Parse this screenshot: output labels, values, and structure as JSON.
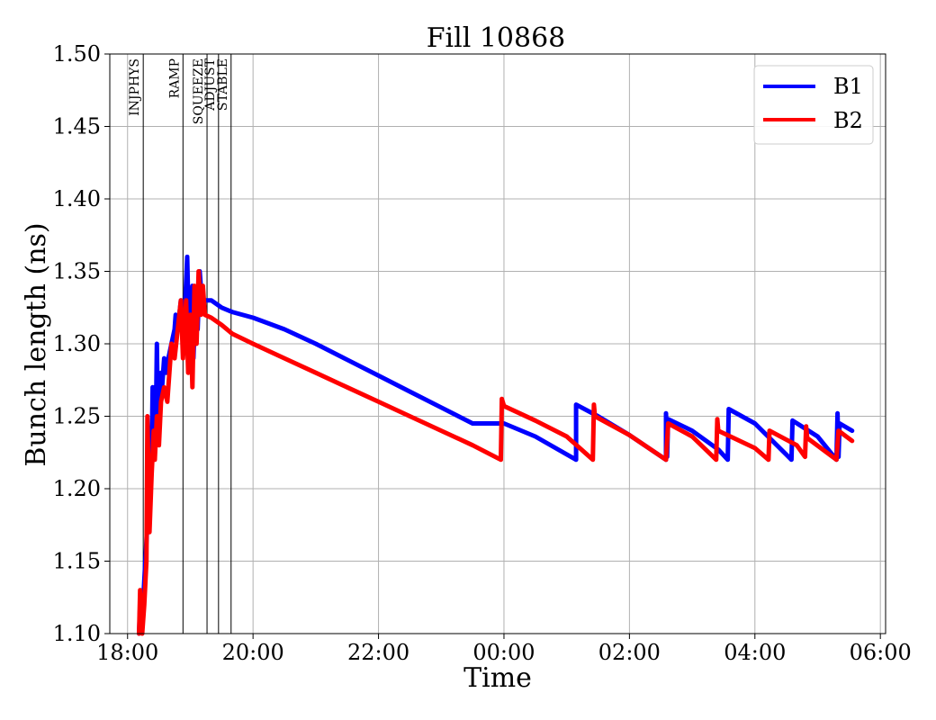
{
  "chart_data": {
    "type": "line",
    "title": "Fill 10868",
    "xlabel": "Time",
    "ylabel": "Bunch length (ns)",
    "xlim": [
      "17:43",
      "06:05"
    ],
    "ylim": [
      1.1,
      1.5
    ],
    "xticks": [
      {
        "time": "18:00",
        "label": "18:00"
      },
      {
        "time": "20:00",
        "label": "20:00"
      },
      {
        "time": "22:00",
        "label": "22:00"
      },
      {
        "time": "00:00",
        "label": "00:00"
      },
      {
        "time": "02:00",
        "label": "02:00"
      },
      {
        "time": "04:00",
        "label": "04:00"
      },
      {
        "time": "06:00",
        "label": "06:00"
      }
    ],
    "yticks": [
      1.1,
      1.15,
      1.2,
      1.25,
      1.3,
      1.35,
      1.4,
      1.45,
      1.5
    ],
    "ytick_labels": [
      "1.10",
      "1.15",
      "1.20",
      "1.25",
      "1.30",
      "1.35",
      "1.40",
      "1.45",
      "1.50"
    ],
    "grid": true,
    "legend": "top-right",
    "phases": [
      {
        "label": "INJPHYS",
        "time": "18:15"
      },
      {
        "label": "RAMP",
        "time": "18:53"
      },
      {
        "label": "SQUEEZE",
        "time": "19:16"
      },
      {
        "label": "ADJUST",
        "time": "19:27"
      },
      {
        "label": "STABLE",
        "time": "19:39"
      }
    ],
    "series": [
      {
        "name": "B1",
        "color": "#0000ff",
        "points": [
          [
            "18:11",
            1.1
          ],
          [
            "18:12",
            1.12
          ],
          [
            "18:14",
            1.11
          ],
          [
            "18:17",
            1.15
          ],
          [
            "18:20",
            1.19
          ],
          [
            "18:23",
            1.22
          ],
          [
            "18:24",
            1.27
          ],
          [
            "18:25",
            1.23
          ],
          [
            "18:26",
            1.27
          ],
          [
            "18:27",
            1.24
          ],
          [
            "18:28",
            1.3
          ],
          [
            "18:29",
            1.25
          ],
          [
            "18:30",
            1.26
          ],
          [
            "18:32",
            1.28
          ],
          [
            "18:33",
            1.27
          ],
          [
            "18:35",
            1.29
          ],
          [
            "18:37",
            1.28
          ],
          [
            "18:39",
            1.29
          ],
          [
            "18:42",
            1.3
          ],
          [
            "18:45",
            1.31
          ],
          [
            "18:46",
            1.32
          ],
          [
            "18:48",
            1.31
          ],
          [
            "18:51",
            1.33
          ],
          [
            "18:54",
            1.31
          ],
          [
            "18:57",
            1.36
          ],
          [
            "18:58",
            1.33
          ],
          [
            "19:00",
            1.3
          ],
          [
            "19:02",
            1.34
          ],
          [
            "19:03",
            1.29
          ],
          [
            "19:05",
            1.33
          ],
          [
            "19:07",
            1.31
          ],
          [
            "19:09",
            1.35
          ],
          [
            "19:11",
            1.33
          ],
          [
            "19:14",
            1.33
          ],
          [
            "19:20",
            1.33
          ],
          [
            "19:30",
            1.325
          ],
          [
            "19:40",
            1.322
          ],
          [
            "20:00",
            1.318
          ],
          [
            "20:30",
            1.31
          ],
          [
            "21:00",
            1.3
          ],
          [
            "21:30",
            1.289
          ],
          [
            "22:00",
            1.278
          ],
          [
            "22:30",
            1.267
          ],
          [
            "23:00",
            1.256
          ],
          [
            "23:30",
            1.245
          ],
          [
            "00:00",
            1.245
          ],
          [
            "00:30",
            1.236
          ],
          [
            "01:09",
            1.22
          ],
          [
            "01:09",
            1.258
          ],
          [
            "01:30",
            1.25
          ],
          [
            "02:00",
            1.237
          ],
          [
            "02:35",
            1.22
          ],
          [
            "02:35",
            1.252
          ],
          [
            "02:36",
            1.222
          ],
          [
            "02:37",
            1.248
          ],
          [
            "03:00",
            1.24
          ],
          [
            "03:25",
            1.227
          ],
          [
            "03:34",
            1.22
          ],
          [
            "03:35",
            1.255
          ],
          [
            "04:00",
            1.245
          ],
          [
            "04:35",
            1.22
          ],
          [
            "04:36",
            1.247
          ],
          [
            "05:00",
            1.236
          ],
          [
            "05:18",
            1.22
          ],
          [
            "05:19",
            1.252
          ],
          [
            "05:20",
            1.222
          ],
          [
            "05:21",
            1.245
          ],
          [
            "05:33",
            1.24
          ]
        ]
      },
      {
        "name": "B2",
        "color": "#ff0000",
        "points": [
          [
            "18:11",
            1.1
          ],
          [
            "18:12",
            1.13
          ],
          [
            "18:14",
            1.1
          ],
          [
            "18:16",
            1.12
          ],
          [
            "18:18",
            1.15
          ],
          [
            "18:19",
            1.25
          ],
          [
            "18:21",
            1.17
          ],
          [
            "18:23",
            1.21
          ],
          [
            "18:25",
            1.24
          ],
          [
            "18:26",
            1.22
          ],
          [
            "18:28",
            1.25
          ],
          [
            "18:30",
            1.23
          ],
          [
            "18:32",
            1.26
          ],
          [
            "18:35",
            1.27
          ],
          [
            "18:38",
            1.26
          ],
          [
            "18:40",
            1.28
          ],
          [
            "18:42",
            1.3
          ],
          [
            "18:45",
            1.29
          ],
          [
            "18:48",
            1.31
          ],
          [
            "18:51",
            1.33
          ],
          [
            "18:53",
            1.29
          ],
          [
            "18:56",
            1.33
          ],
          [
            "18:58",
            1.28
          ],
          [
            "19:00",
            1.32
          ],
          [
            "19:02",
            1.27
          ],
          [
            "19:04",
            1.34
          ],
          [
            "19:06",
            1.3
          ],
          [
            "19:08",
            1.35
          ],
          [
            "19:10",
            1.32
          ],
          [
            "19:12",
            1.34
          ],
          [
            "19:14",
            1.32
          ],
          [
            "19:20",
            1.318
          ],
          [
            "19:30",
            1.313
          ],
          [
            "19:40",
            1.307
          ],
          [
            "20:00",
            1.3
          ],
          [
            "20:30",
            1.29
          ],
          [
            "21:00",
            1.28
          ],
          [
            "21:30",
            1.27
          ],
          [
            "22:00",
            1.26
          ],
          [
            "22:30",
            1.25
          ],
          [
            "23:00",
            1.24
          ],
          [
            "23:30",
            1.23
          ],
          [
            "23:57",
            1.22
          ],
          [
            "23:58",
            1.262
          ],
          [
            "00:00",
            1.257
          ],
          [
            "00:30",
            1.247
          ],
          [
            "01:00",
            1.236
          ],
          [
            "01:25",
            1.22
          ],
          [
            "01:26",
            1.258
          ],
          [
            "01:27",
            1.25
          ],
          [
            "02:00",
            1.237
          ],
          [
            "02:35",
            1.22
          ],
          [
            "02:37",
            1.245
          ],
          [
            "03:00",
            1.236
          ],
          [
            "03:23",
            1.22
          ],
          [
            "03:24",
            1.248
          ],
          [
            "03:25",
            1.24
          ],
          [
            "04:00",
            1.228
          ],
          [
            "04:13",
            1.22
          ],
          [
            "04:14",
            1.24
          ],
          [
            "04:40",
            1.23
          ],
          [
            "04:48",
            1.222
          ],
          [
            "04:49",
            1.243
          ],
          [
            "04:50",
            1.235
          ],
          [
            "05:18",
            1.22
          ],
          [
            "05:20",
            1.24
          ],
          [
            "05:33",
            1.233
          ]
        ]
      }
    ]
  }
}
